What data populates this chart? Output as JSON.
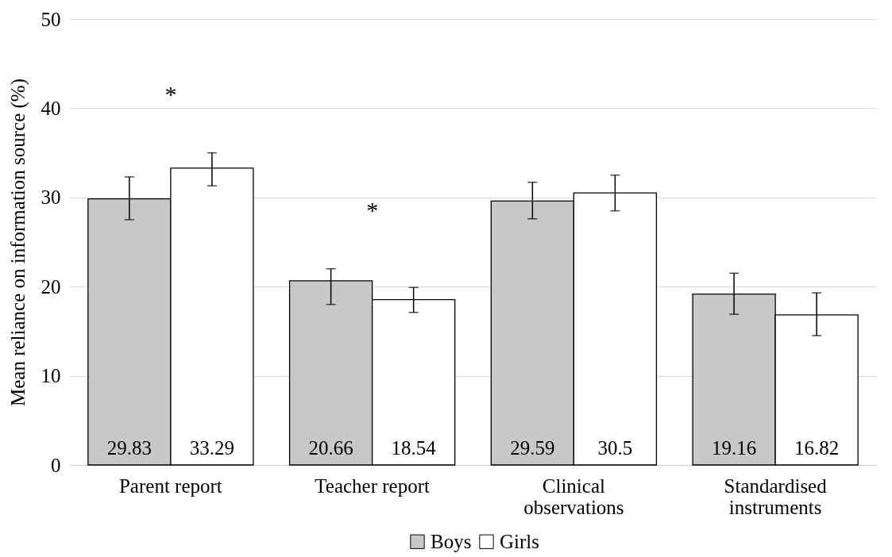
{
  "chart_data": {
    "type": "bar",
    "ylabel": "Mean reliance on information source (%)",
    "categories": [
      "Parent report",
      "Teacher report",
      "Clinical observations",
      "Standardised instruments"
    ],
    "series": [
      {
        "name": "Boys",
        "color": "#c8c8c8",
        "values": [
          29.83,
          20.66,
          29.59,
          19.16
        ],
        "errors": [
          [
            27.5,
            32.3
          ],
          [
            18.0,
            22.0
          ],
          [
            27.6,
            31.7
          ],
          [
            16.9,
            21.5
          ]
        ]
      },
      {
        "name": "Girls",
        "color": "#ffffff",
        "values": [
          33.29,
          18.54,
          30.5,
          16.82
        ],
        "errors": [
          [
            31.3,
            35.0
          ],
          [
            17.1,
            19.9
          ],
          [
            28.5,
            32.5
          ],
          [
            14.5,
            19.3
          ]
        ]
      }
    ],
    "ylim": [
      0,
      50
    ],
    "yticks": [
      0,
      10,
      20,
      30,
      40,
      50
    ],
    "grid": "y",
    "legend": "bottom",
    "data_labels": true,
    "annotations": [
      "*",
      "*"
    ]
  }
}
